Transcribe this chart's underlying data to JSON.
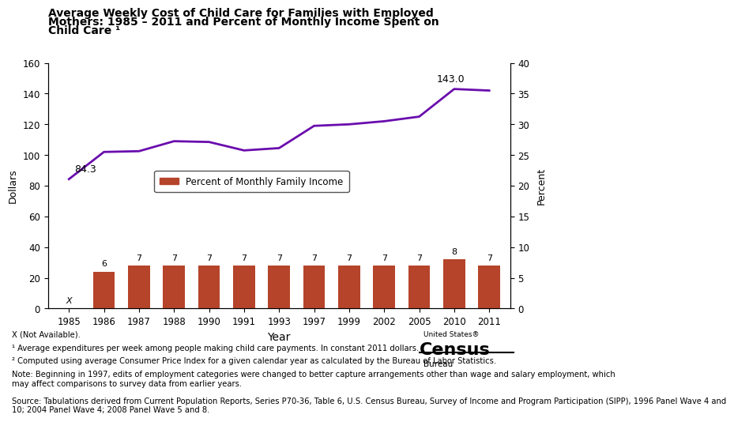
{
  "title_line1": "Average Weekly Cost of Child Care for Families with Employed",
  "title_line2": "Mothers: 1985 – 2011 and Percent of Monthly Income Spent on",
  "title_line3": "Child Care ¹",
  "years": [
    1985,
    1986,
    1987,
    1988,
    1990,
    1991,
    1993,
    1997,
    1999,
    2002,
    2005,
    2010,
    2011
  ],
  "line_values": [
    84.3,
    102.0,
    102.5,
    109.0,
    108.5,
    103.0,
    104.5,
    119.0,
    120.0,
    122.0,
    125.0,
    143.0,
    142.0
  ],
  "bar_values": [
    null,
    6,
    7,
    7,
    7,
    7,
    7,
    7,
    7,
    7,
    7,
    8,
    7
  ],
  "bar_color": "#b5442a",
  "line_color": "#6a0dad",
  "ylabel_left": "Dollars",
  "ylabel_right": "Percent",
  "xlabel": "Year",
  "ylim_left": [
    0,
    160
  ],
  "ylim_right": [
    0,
    40
  ],
  "yticks_left": [
    0,
    20,
    40,
    60,
    80,
    100,
    120,
    140,
    160
  ],
  "yticks_right": [
    0,
    5,
    10,
    15,
    20,
    25,
    30,
    35,
    40
  ],
  "annotation_84": "84.3",
  "annotation_143": "143.0",
  "legend_label": "Percent of Monthly Family Income",
  "footnote_x": "X (Not Available).",
  "footnote1": "¹ Average expenditures per week among people making child care payments. In constant 2011 dollars.",
  "footnote2": "² Computed using average Consumer Price Index for a given calendar year as calculated by the Bureau of Labor Statistics.",
  "note": "Note: Beginning in 1997, edits of employment categories were changed to better capture arrangements other than wage and salary employment, which\nmay affect comparisons to survey data from earlier years.",
  "source": "Source: Tabulations derived from Current Population Reports, Series P70-36, Table 6, U.S. Census Bureau, Survey of Income and Program Participation (SIPP), 1996 Panel Wave 4 and\n10; 2004 Panel Wave 4; 2008 Panel Wave 5 and 8."
}
